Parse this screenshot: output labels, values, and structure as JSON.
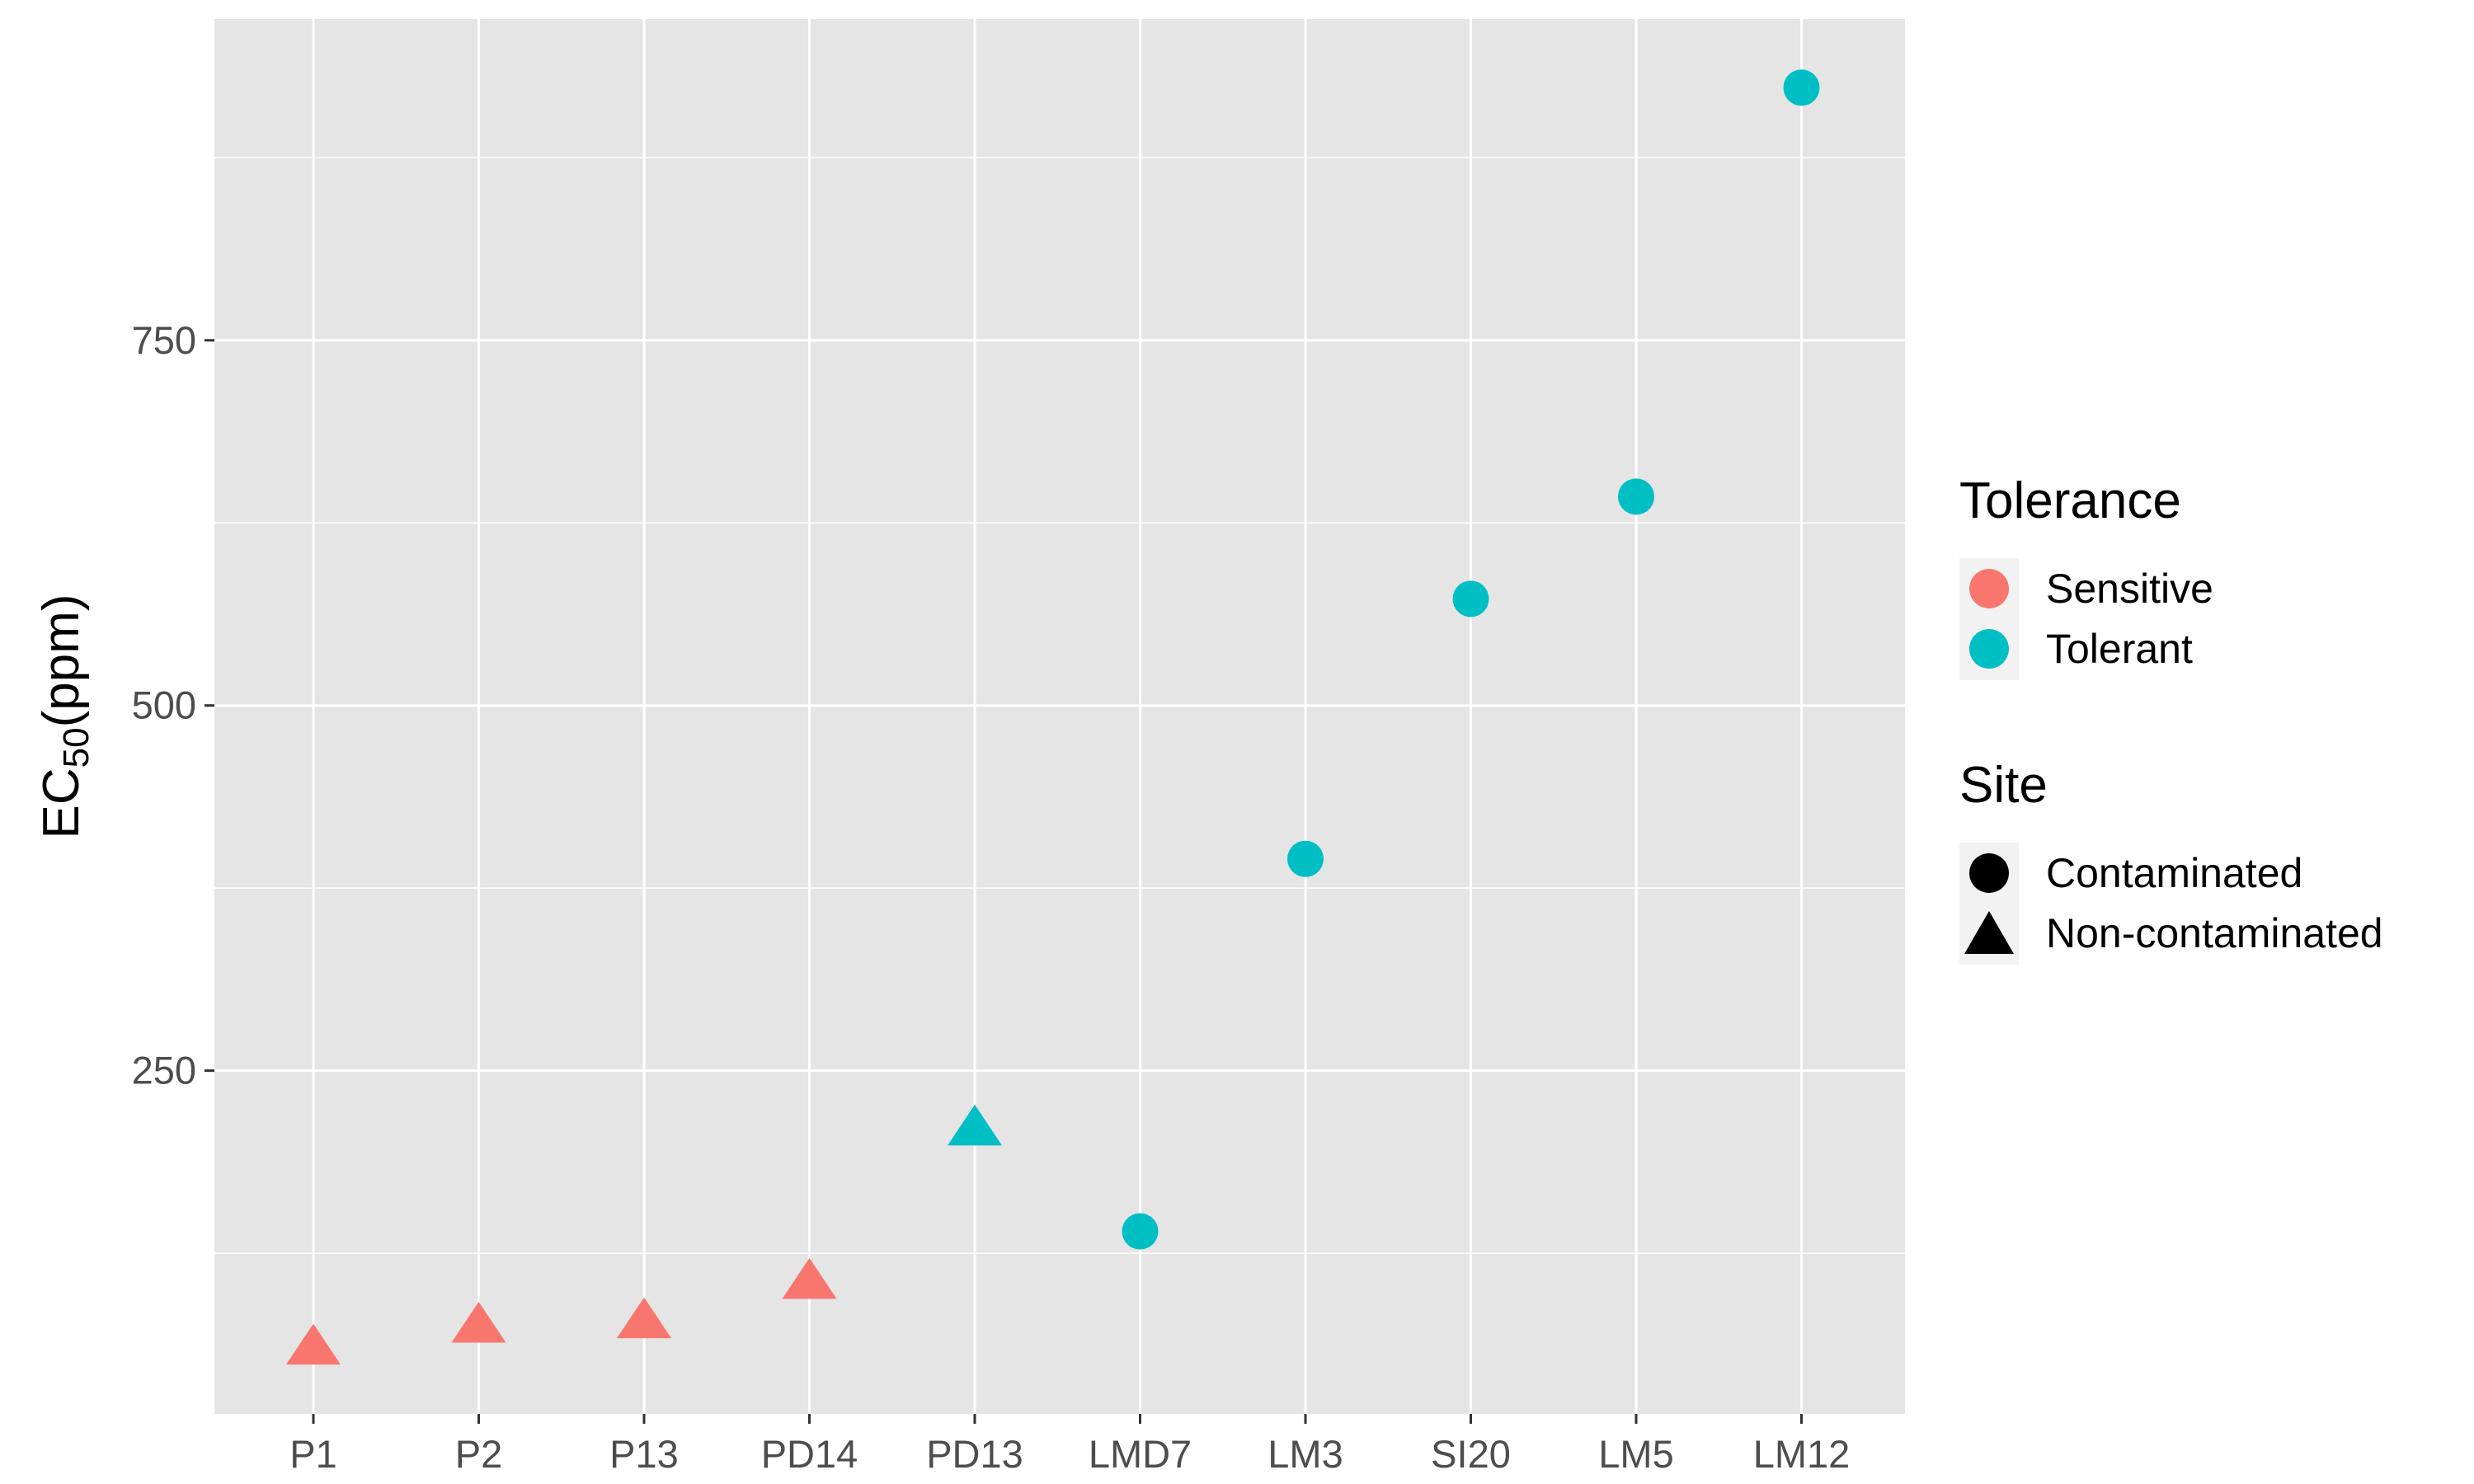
{
  "chart_data": {
    "type": "scatter",
    "categories": [
      "P1",
      "P2",
      "P13",
      "PD14",
      "PD13",
      "LMD7",
      "LM3",
      "SI20",
      "LM5",
      "LM12"
    ],
    "values": [
      60,
      75,
      78,
      105,
      210,
      140,
      395,
      573,
      643,
      923
    ],
    "tolerance": [
      "Sensitive",
      "Sensitive",
      "Sensitive",
      "Sensitive",
      "Tolerant",
      "Tolerant",
      "Tolerant",
      "Tolerant",
      "Tolerant",
      "Tolerant"
    ],
    "site": [
      "Non-contaminated",
      "Non-contaminated",
      "Non-contaminated",
      "Non-contaminated",
      "Non-contaminated",
      "Contaminated",
      "Contaminated",
      "Contaminated",
      "Contaminated",
      "Contaminated"
    ],
    "ylabel": {
      "main": "EC",
      "sub": "50",
      "suffix": "(ppm)"
    },
    "ylim": [
      15,
      970
    ],
    "yticks": [
      250,
      500,
      750
    ],
    "ytick_labels": [
      "250",
      "500",
      "750"
    ],
    "ygrid_minor": [
      125,
      375,
      625,
      875
    ],
    "grid": true,
    "legend": {
      "placement": "right",
      "tolerance": {
        "title": "Tolerance",
        "entries": [
          "Sensitive",
          "Tolerant"
        ]
      },
      "site": {
        "title": "Site",
        "entries": [
          "Contaminated",
          "Non-contaminated"
        ]
      }
    },
    "colors": {
      "Sensitive": "#F8766D",
      "Tolerant": "#00BFC4"
    },
    "shapes": {
      "Contaminated": "circle",
      "Non-contaminated": "triangle"
    },
    "panel_color": "#E5E5E5"
  }
}
